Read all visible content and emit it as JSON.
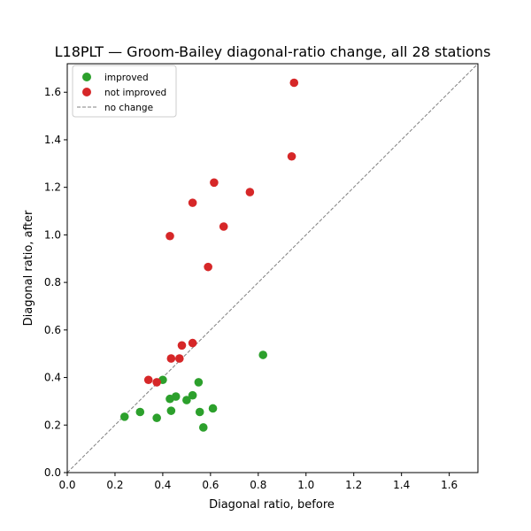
{
  "chart_data": {
    "type": "scatter",
    "title": "L18PLT — Groom-Bailey diagonal-ratio change, all 28 stations",
    "xlabel": "Diagonal ratio, before",
    "ylabel": "Diagonal ratio, after",
    "xlim": [
      0.0,
      1.72
    ],
    "ylim": [
      0.0,
      1.72
    ],
    "xticks": [
      "0.0",
      "0.2",
      "0.4",
      "0.6",
      "0.8",
      "1.0",
      "1.2",
      "1.4",
      "1.6"
    ],
    "yticks": [
      "0.0",
      "0.2",
      "0.4",
      "0.6",
      "0.8",
      "1.0",
      "1.2",
      "1.4",
      "1.6"
    ],
    "grid": false,
    "legend_position": "top-left",
    "series": [
      {
        "name": "improved",
        "color": "#2ca02c",
        "points": [
          [
            0.24,
            0.235
          ],
          [
            0.305,
            0.255
          ],
          [
            0.375,
            0.23
          ],
          [
            0.4,
            0.39
          ],
          [
            0.43,
            0.31
          ],
          [
            0.435,
            0.26
          ],
          [
            0.455,
            0.32
          ],
          [
            0.5,
            0.305
          ],
          [
            0.525,
            0.325
          ],
          [
            0.55,
            0.38
          ],
          [
            0.555,
            0.255
          ],
          [
            0.57,
            0.19
          ],
          [
            0.61,
            0.27
          ],
          [
            0.82,
            0.495
          ]
        ]
      },
      {
        "name": "not improved",
        "color": "#d62728",
        "points": [
          [
            0.34,
            0.39
          ],
          [
            0.375,
            0.38
          ],
          [
            0.435,
            0.48
          ],
          [
            0.43,
            0.995
          ],
          [
            0.47,
            0.48
          ],
          [
            0.48,
            0.535
          ],
          [
            0.525,
            0.545
          ],
          [
            0.525,
            1.135
          ],
          [
            0.59,
            0.865
          ],
          [
            0.615,
            1.22
          ],
          [
            0.655,
            1.035
          ],
          [
            0.765,
            1.18
          ],
          [
            0.94,
            1.33
          ],
          [
            0.95,
            1.64
          ]
        ]
      }
    ],
    "reference_line": {
      "name": "no change",
      "color": "#808080",
      "style": "dashed"
    }
  }
}
